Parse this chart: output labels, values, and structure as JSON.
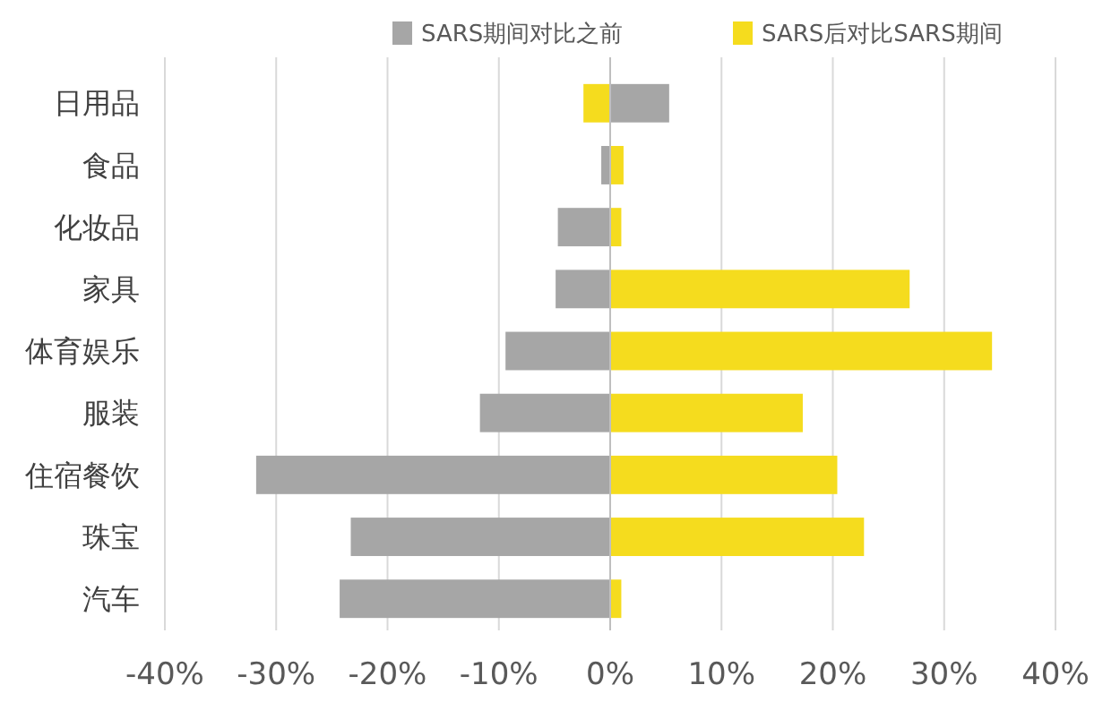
{
  "chart_data": {
    "type": "bar",
    "orientation": "horizontal",
    "categories": [
      "日用品",
      "食品",
      "化妆品",
      "家具",
      "体育娱乐",
      "服装",
      "住宿餐饮",
      "珠宝",
      "汽车"
    ],
    "series": [
      {
        "name": "SARS期间对比之前",
        "color": "#a6a6a6",
        "values": [
          5.3,
          -0.8,
          -4.7,
          -4.9,
          -9.4,
          -11.7,
          -31.8,
          -23.3,
          -24.3
        ]
      },
      {
        "name": "SARS后对比SARS期间",
        "color": "#f5dc1e",
        "values": [
          -2.4,
          1.2,
          1.0,
          26.9,
          34.3,
          17.3,
          20.4,
          22.8,
          1.0
        ]
      }
    ],
    "xlim": [
      -40,
      40
    ],
    "stacked": true,
    "xticks": [
      {
        "value": -40,
        "label": "-40%"
      },
      {
        "value": -30,
        "label": "-30%"
      },
      {
        "value": -20,
        "label": "-20%"
      },
      {
        "value": -10,
        "label": "-10%"
      },
      {
        "value": 0,
        "label": "0%"
      },
      {
        "value": 10,
        "label": "10%"
      },
      {
        "value": 20,
        "label": "20%"
      },
      {
        "value": 30,
        "label": "30%"
      },
      {
        "value": 40,
        "label": "40%"
      }
    ],
    "grid": "x",
    "legend": "top right"
  }
}
